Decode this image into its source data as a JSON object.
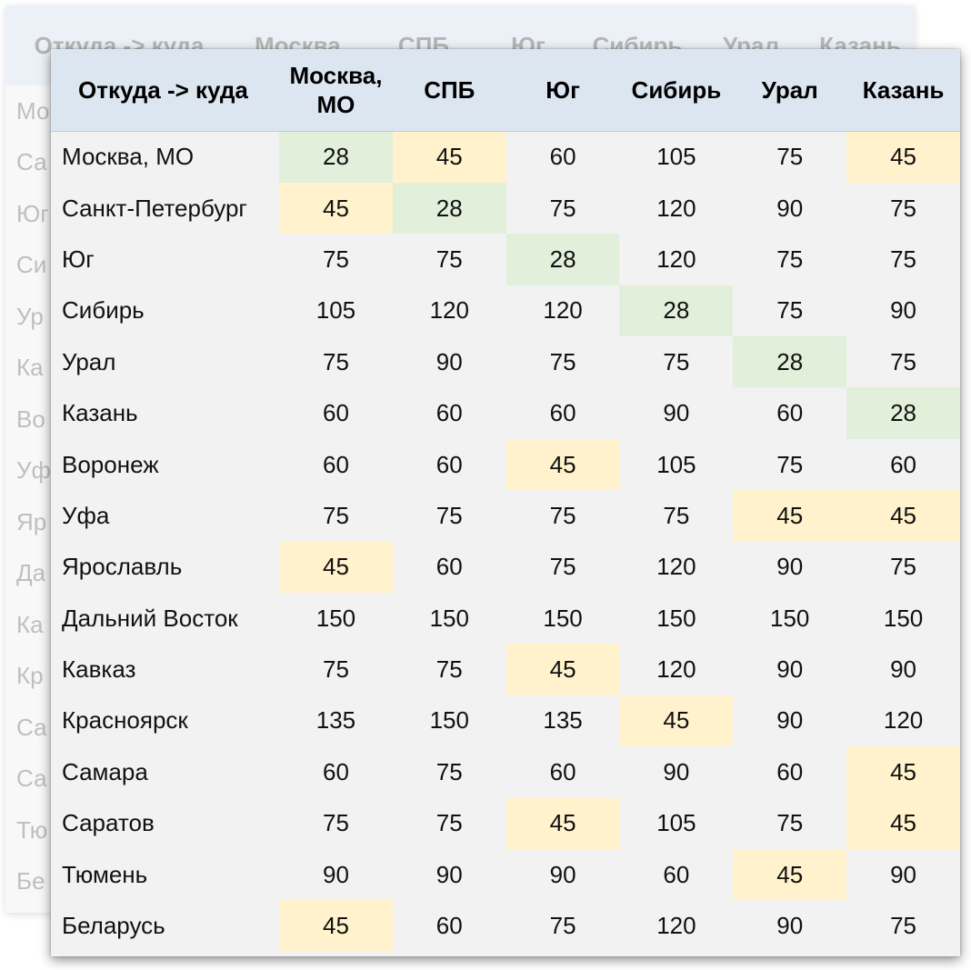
{
  "colors": {
    "header_bg": "#dce6f1",
    "table_bg": "#f2f2f2",
    "highlight_green": "#e2efda",
    "highlight_yellow": "#fff2cc"
  },
  "table": {
    "corner_label": "Откуда -> куда",
    "columns": [
      "Москва, МО",
      "СПБ",
      "Юг",
      "Сибирь",
      "Урал",
      "Казань"
    ],
    "rows": [
      {
        "name": "Москва, МО",
        "values": [
          "28",
          "45",
          "60",
          "105",
          "75",
          "45"
        ],
        "hl": [
          "g",
          "y",
          "",
          "",
          "",
          "y"
        ]
      },
      {
        "name": "Санкт-Петербург",
        "values": [
          "45",
          "28",
          "75",
          "120",
          "90",
          "75"
        ],
        "hl": [
          "y",
          "g",
          "",
          "",
          "",
          ""
        ]
      },
      {
        "name": "Юг",
        "values": [
          "75",
          "75",
          "28",
          "120",
          "75",
          "75"
        ],
        "hl": [
          "",
          "",
          "g",
          "",
          "",
          ""
        ]
      },
      {
        "name": "Сибирь",
        "values": [
          "105",
          "120",
          "120",
          "28",
          "75",
          "90"
        ],
        "hl": [
          "",
          "",
          "",
          "g",
          "",
          ""
        ]
      },
      {
        "name": "Урал",
        "values": [
          "75",
          "90",
          "75",
          "75",
          "28",
          "75"
        ],
        "hl": [
          "",
          "",
          "",
          "",
          "g",
          ""
        ]
      },
      {
        "name": "Казань",
        "values": [
          "60",
          "60",
          "60",
          "90",
          "60",
          "28"
        ],
        "hl": [
          "",
          "",
          "",
          "",
          "",
          "g"
        ]
      },
      {
        "name": "Воронеж",
        "values": [
          "60",
          "60",
          "45",
          "105",
          "75",
          "60"
        ],
        "hl": [
          "",
          "",
          "y",
          "",
          "",
          ""
        ]
      },
      {
        "name": "Уфа",
        "values": [
          "75",
          "75",
          "75",
          "75",
          "45",
          "45"
        ],
        "hl": [
          "",
          "",
          "",
          "",
          "y",
          "y"
        ]
      },
      {
        "name": "Ярославль",
        "values": [
          "45",
          "60",
          "75",
          "120",
          "90",
          "75"
        ],
        "hl": [
          "y",
          "",
          "",
          "",
          "",
          ""
        ]
      },
      {
        "name": "Дальний Восток",
        "values": [
          "150",
          "150",
          "150",
          "150",
          "150",
          "150"
        ],
        "hl": [
          "",
          "",
          "",
          "",
          "",
          ""
        ]
      },
      {
        "name": "Кавказ",
        "values": [
          "75",
          "75",
          "45",
          "120",
          "90",
          "90"
        ],
        "hl": [
          "",
          "",
          "y",
          "",
          "",
          ""
        ]
      },
      {
        "name": "Красноярск",
        "values": [
          "135",
          "150",
          "135",
          "45",
          "90",
          "120"
        ],
        "hl": [
          "",
          "",
          "",
          "y",
          "",
          ""
        ]
      },
      {
        "name": "Самара",
        "values": [
          "60",
          "75",
          "60",
          "90",
          "60",
          "45"
        ],
        "hl": [
          "",
          "",
          "",
          "",
          "",
          "y"
        ]
      },
      {
        "name": "Саратов",
        "values": [
          "75",
          "75",
          "45",
          "105",
          "75",
          "45"
        ],
        "hl": [
          "",
          "",
          "y",
          "",
          "",
          "y"
        ]
      },
      {
        "name": "Тюмень",
        "values": [
          "90",
          "90",
          "90",
          "60",
          "45",
          "90"
        ],
        "hl": [
          "",
          "",
          "",
          "",
          "y",
          ""
        ]
      },
      {
        "name": "Беларусь",
        "values": [
          "45",
          "60",
          "75",
          "120",
          "90",
          "75"
        ],
        "hl": [
          "y",
          "",
          "",
          "",
          "",
          ""
        ]
      }
    ]
  },
  "background_card": {
    "header": [
      "Откуда -> куда",
      "Москва,",
      "СПБ",
      "Юг",
      "Сибирь",
      "Урал",
      "Казань"
    ],
    "row_fragments": [
      "Мо",
      "Са",
      "Юг",
      "Си",
      "Ур",
      "Ка",
      "Во",
      "Уф",
      "Яр",
      "Да",
      "Ка",
      "Кр",
      "Са",
      "Са",
      "Тю",
      "Бе"
    ]
  }
}
